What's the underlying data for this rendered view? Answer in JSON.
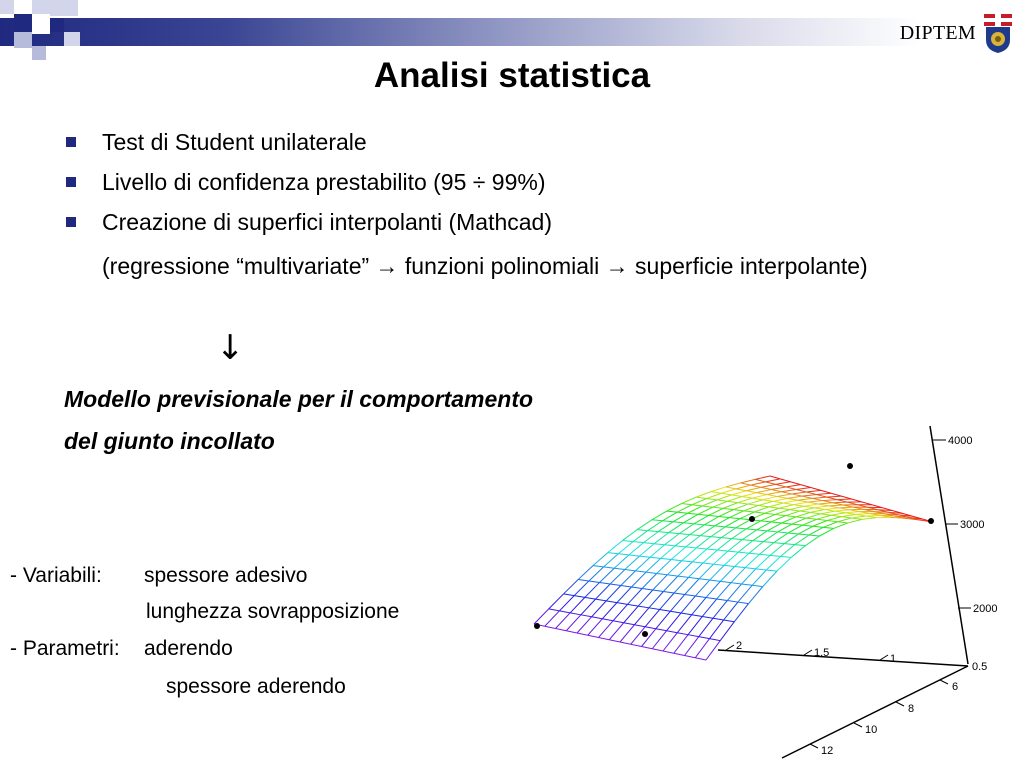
{
  "header": {
    "logo_text": "DIPTEM",
    "title": "Analisi statistica"
  },
  "bullets": [
    {
      "text": "Test di Student unilaterale"
    },
    {
      "text": "Livello di confidenza prestabilito (95 ÷ 99%)"
    },
    {
      "text": "Creazione di superfici interpolanti (Mathcad)"
    }
  ],
  "continuation": "(regressione “multivariate” → funzioni polinomiali → superficie interpolante)",
  "down_arrow": "↓",
  "model": {
    "line1": "Modello previsionale per il comportamento",
    "line2": "del giunto incollato"
  },
  "variables": {
    "label": "- Variabili:",
    "items": [
      "spessore adesivo",
      "lunghezza sovrapposizione"
    ]
  },
  "parameters": {
    "label": "- Parametri:",
    "items": [
      "aderendo",
      "spessore aderendo"
    ]
  },
  "plot": {
    "z_ticks": [
      "4000",
      "3000",
      "2000"
    ],
    "x_ticks": [
      "2",
      "1.5",
      "1",
      "0.5"
    ],
    "y_ticks": [
      "6",
      "8",
      "10",
      "12"
    ]
  },
  "colors": {
    "band_dark": "#1f2980",
    "bullet": "#1f2980"
  }
}
